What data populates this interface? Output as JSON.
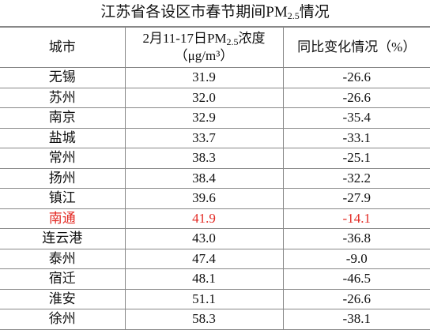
{
  "title": {
    "parts": [
      "江苏省各设区市春节期间PM",
      "2.5",
      "情况"
    ]
  },
  "table": {
    "header": {
      "city": "城市",
      "concentration": {
        "line1": [
          "2月11-17日PM",
          "2.5",
          "浓度"
        ],
        "line2": "（μg/m³）"
      },
      "change": "同比变化情况（%）"
    },
    "rows": [
      [
        "无锡",
        "31.9",
        "-26.6"
      ],
      [
        "苏州",
        "32.0",
        "-26.6"
      ],
      [
        "南京",
        "32.9",
        "-35.4"
      ],
      [
        "盐城",
        "33.7",
        "-33.1"
      ],
      [
        "常州",
        "38.3",
        "-25.1"
      ],
      [
        "扬州",
        "38.4",
        "-32.2"
      ],
      [
        "镇江",
        "39.6",
        "-27.9"
      ],
      [
        "南通",
        "41.9",
        "-14.1"
      ],
      [
        "连云港",
        "43.0",
        "-36.8"
      ],
      [
        "泰州",
        "47.4",
        "-9.0"
      ],
      [
        "宿迁",
        "48.1",
        "-46.5"
      ],
      [
        "淮安",
        "51.1",
        "-26.6"
      ],
      [
        "徐州",
        "58.3",
        "-38.1"
      ]
    ],
    "highlight": {
      "row": 7,
      "color": "#e32b25"
    }
  }
}
